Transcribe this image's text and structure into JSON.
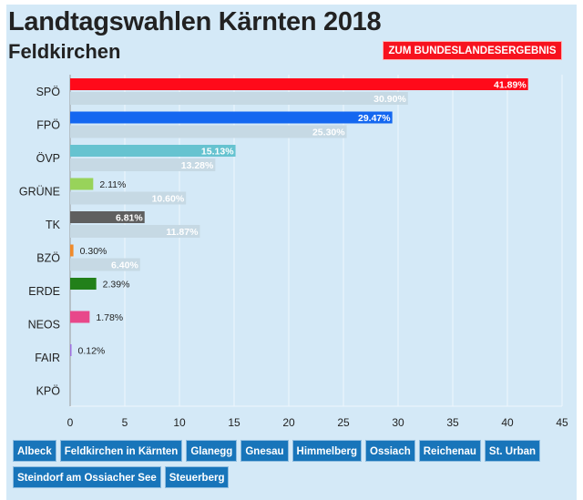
{
  "header": {
    "title": "Landtagswahlen Kärnten 2018",
    "subtitle": "Feldkirchen",
    "state_result_button": "ZUM BUNDESLANDESERGEBNIS"
  },
  "chart_data": {
    "type": "bar",
    "orientation": "horizontal",
    "categories": [
      "SPÖ",
      "FPÖ",
      "ÖVP",
      "GRÜNE",
      "TK",
      "BZÖ",
      "ERDE",
      "NEOS",
      "FAIR",
      "KPÖ"
    ],
    "series": [
      {
        "values": [
          41.89,
          29.47,
          15.13,
          2.11,
          6.81,
          0.3,
          2.39,
          1.78,
          0.12,
          0
        ],
        "labels": [
          "41.89%",
          "29.47%",
          "15.13%",
          "2.11%",
          "6.81%",
          "0.30%",
          "2.39%",
          "1.78%",
          "0.12%",
          ""
        ],
        "colors": [
          "#ff0a1a",
          "#1467f0",
          "#66c3d0",
          "#98d35a",
          "#5f5f5f",
          "#f08a2a",
          "#22801a",
          "#e8488a",
          "#a070e0",
          "#888888"
        ]
      },
      {
        "values": [
          30.9,
          25.3,
          13.28,
          10.6,
          11.87,
          6.4,
          null,
          null,
          null,
          null
        ],
        "labels": [
          "30.90%",
          "25.30%",
          "13.28%",
          "10.60%",
          "11.87%",
          "6.40%",
          "",
          "",
          "",
          ""
        ],
        "color": "#c6d9e4"
      }
    ],
    "xlim": [
      0,
      45
    ],
    "xticks": [
      0,
      5,
      10,
      15,
      20,
      25,
      30,
      35,
      40,
      45
    ],
    "grid": true
  },
  "municipalities": [
    "Albeck",
    "Feldkirchen in Kärnten",
    "Glanegg",
    "Gnesau",
    "Himmelberg",
    "Ossiach",
    "Reichenau",
    "St. Urban",
    "Steindorf am Ossiacher See",
    "Steuerberg"
  ]
}
